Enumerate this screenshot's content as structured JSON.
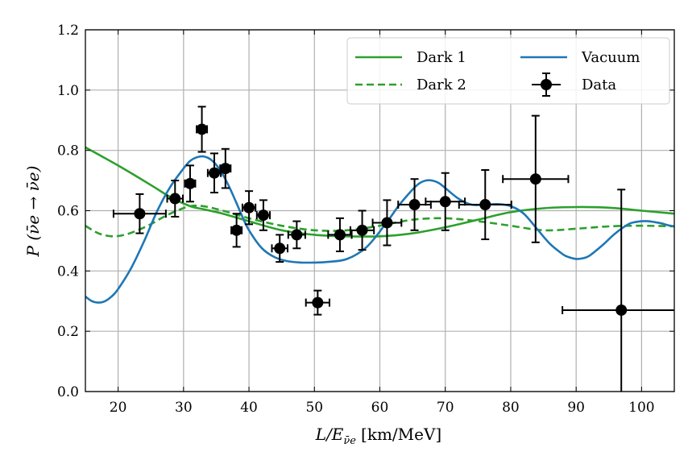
{
  "chart_data": {
    "type": "line",
    "xlabel": "L/E",
    "xlabel_sub": "ν̄e",
    "xlabel_unit": "[km/MeV]",
    "ylabel": "P (ν̄e → ν̄e)",
    "xlim": [
      15,
      105
    ],
    "ylim": [
      0.0,
      1.2
    ],
    "xticks": [
      20,
      30,
      40,
      50,
      60,
      70,
      80,
      90,
      100
    ],
    "yticks": [
      0.0,
      0.2,
      0.4,
      0.6,
      0.8,
      1.0,
      1.2
    ],
    "grid": true,
    "legend_position": "top-right",
    "series": [
      {
        "name": "Dark 1",
        "style": "solid",
        "color": "#2ca02c",
        "x": [
          15,
          20,
          25,
          28,
          31,
          33,
          36,
          40,
          45,
          50,
          55,
          60,
          65,
          70,
          75,
          80,
          85,
          90,
          95,
          100,
          105
        ],
        "y": [
          0.81,
          0.75,
          0.685,
          0.645,
          0.615,
          0.605,
          0.59,
          0.565,
          0.535,
          0.52,
          0.515,
          0.515,
          0.525,
          0.545,
          0.57,
          0.595,
          0.608,
          0.612,
          0.61,
          0.6,
          0.59
        ]
      },
      {
        "name": "Dark 2",
        "style": "dashed",
        "color": "#2ca02c",
        "x": [
          15,
          17,
          19,
          21,
          23,
          25,
          27,
          29,
          31,
          33,
          36,
          40,
          45,
          50,
          55,
          60,
          65,
          70,
          75,
          80,
          85,
          90,
          95,
          100,
          105
        ],
        "y": [
          0.55,
          0.525,
          0.515,
          0.52,
          0.535,
          0.555,
          0.58,
          0.6,
          0.615,
          0.615,
          0.6,
          0.575,
          0.55,
          0.535,
          0.535,
          0.55,
          0.57,
          0.575,
          0.565,
          0.55,
          0.535,
          0.54,
          0.548,
          0.55,
          0.548
        ]
      },
      {
        "name": "Vacuum",
        "style": "solid",
        "color": "#1f77b4",
        "x": [
          15,
          16,
          17,
          18,
          19,
          20,
          22,
          24,
          26,
          28,
          30,
          31,
          32,
          33,
          34,
          35,
          36,
          37,
          38,
          39,
          40,
          42,
          44,
          46,
          48,
          50,
          52,
          55,
          58,
          61,
          63,
          65,
          66,
          67,
          68,
          69,
          70,
          72,
          74,
          76,
          78,
          80,
          82,
          84,
          86,
          88,
          89,
          90,
          91,
          92,
          94,
          96,
          98,
          99,
          100,
          101,
          102,
          103,
          104,
          105
        ],
        "y": [
          0.315,
          0.3,
          0.295,
          0.3,
          0.315,
          0.34,
          0.41,
          0.5,
          0.6,
          0.68,
          0.74,
          0.765,
          0.777,
          0.78,
          0.772,
          0.752,
          0.72,
          0.678,
          0.63,
          0.58,
          0.535,
          0.475,
          0.445,
          0.432,
          0.428,
          0.428,
          0.43,
          0.44,
          0.48,
          0.56,
          0.62,
          0.67,
          0.69,
          0.7,
          0.7,
          0.692,
          0.675,
          0.64,
          0.62,
          0.62,
          0.622,
          0.615,
          0.59,
          0.54,
          0.49,
          0.455,
          0.445,
          0.44,
          0.442,
          0.45,
          0.485,
          0.525,
          0.555,
          0.562,
          0.565,
          0.565,
          0.562,
          0.558,
          0.552,
          0.548
        ]
      }
    ],
    "data_series": {
      "name": "Data",
      "color": "#000000",
      "points": [
        {
          "x": 23.3,
          "y": 0.59,
          "xerr": 4.0,
          "yerr": 0.065
        },
        {
          "x": 28.7,
          "y": 0.64,
          "xerr": 1.2,
          "yerr": 0.06
        },
        {
          "x": 31.0,
          "y": 0.69,
          "xerr": 0.8,
          "yerr": 0.06
        },
        {
          "x": 32.8,
          "y": 0.87,
          "xerr": 0.8,
          "yerr": 0.075
        },
        {
          "x": 34.7,
          "y": 0.725,
          "xerr": 1.0,
          "yerr": 0.065
        },
        {
          "x": 36.4,
          "y": 0.74,
          "xerr": 0.8,
          "yerr": 0.065
        },
        {
          "x": 38.1,
          "y": 0.535,
          "xerr": 0.8,
          "yerr": 0.055
        },
        {
          "x": 40.0,
          "y": 0.61,
          "xerr": 1.0,
          "yerr": 0.055
        },
        {
          "x": 42.2,
          "y": 0.585,
          "xerr": 1.0,
          "yerr": 0.05
        },
        {
          "x": 44.7,
          "y": 0.475,
          "xerr": 1.2,
          "yerr": 0.045
        },
        {
          "x": 47.3,
          "y": 0.52,
          "xerr": 1.3,
          "yerr": 0.045
        },
        {
          "x": 50.5,
          "y": 0.295,
          "xerr": 1.8,
          "yerr": 0.04
        },
        {
          "x": 53.9,
          "y": 0.52,
          "xerr": 1.8,
          "yerr": 0.055
        },
        {
          "x": 57.3,
          "y": 0.535,
          "xerr": 1.8,
          "yerr": 0.065
        },
        {
          "x": 61.1,
          "y": 0.56,
          "xerr": 2.2,
          "yerr": 0.075
        },
        {
          "x": 65.3,
          "y": 0.62,
          "xerr": 2.5,
          "yerr": 0.085
        },
        {
          "x": 70.0,
          "y": 0.63,
          "xerr": 3.0,
          "yerr": 0.095
        },
        {
          "x": 76.1,
          "y": 0.62,
          "xerr": 4.0,
          "yerr": 0.115
        },
        {
          "x": 83.8,
          "y": 0.705,
          "xerr": 5.0,
          "yerr": 0.21
        },
        {
          "x": 96.9,
          "y": 0.27,
          "xerr": 9.0,
          "yerr": 0.4
        }
      ]
    },
    "legend": [
      {
        "label": "Dark 1",
        "kind": "solid",
        "color": "#2ca02c"
      },
      {
        "label": "Vacuum",
        "kind": "solid",
        "color": "#1f77b4"
      },
      {
        "label": "Dark 2",
        "kind": "dashed",
        "color": "#2ca02c"
      },
      {
        "label": "Data",
        "kind": "errorbar",
        "color": "#000000"
      }
    ]
  }
}
